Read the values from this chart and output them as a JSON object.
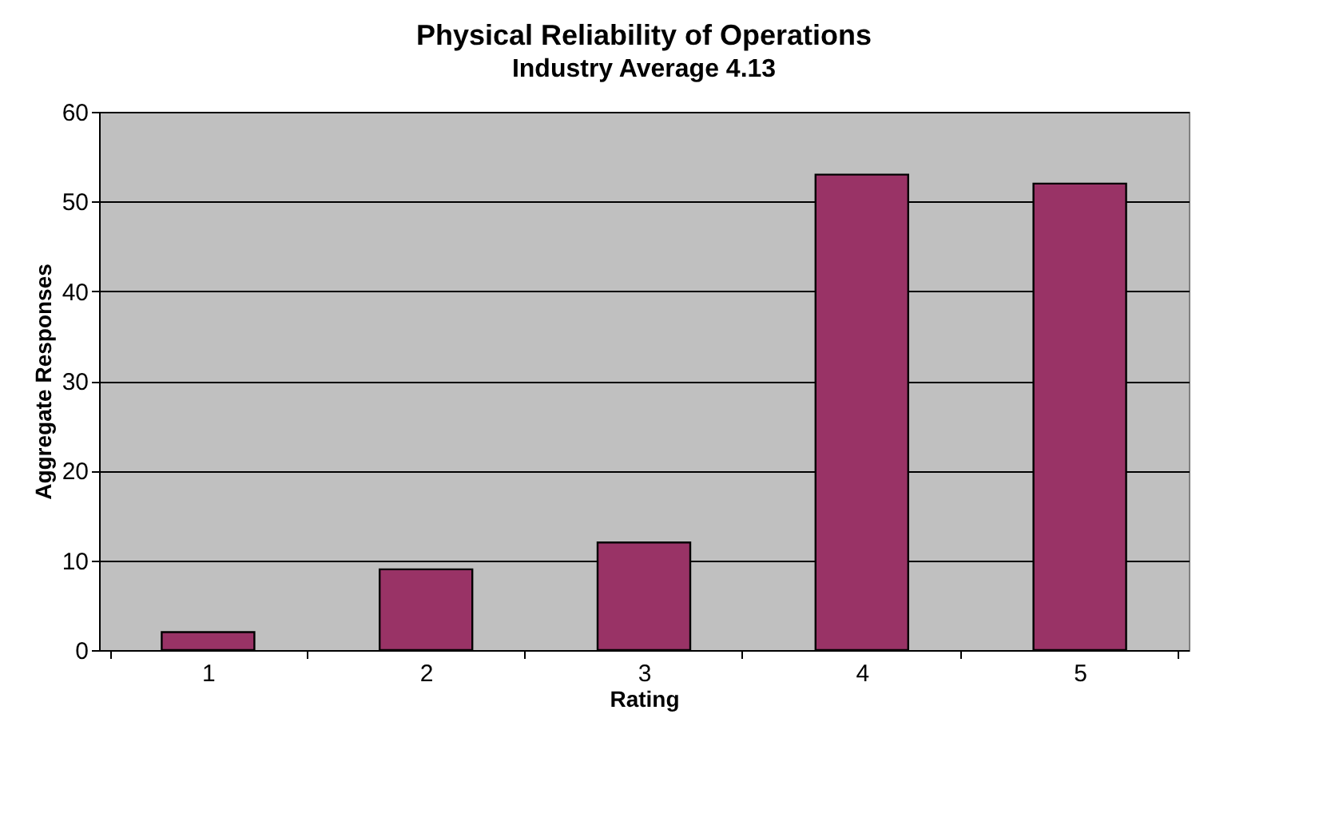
{
  "chart_data": {
    "type": "bar",
    "title": "Physical Reliability of Operations",
    "subtitle": "Industry Average 4.13",
    "xlabel": "Rating",
    "ylabel": "Aggregate Responses",
    "categories": [
      "1",
      "2",
      "3",
      "4",
      "5"
    ],
    "values": [
      2,
      9,
      12,
      53,
      52
    ],
    "color": "#993366",
    "ylim": [
      0,
      60
    ],
    "yticks": [
      0,
      10,
      20,
      30,
      40,
      50,
      60
    ],
    "grid": "y"
  }
}
